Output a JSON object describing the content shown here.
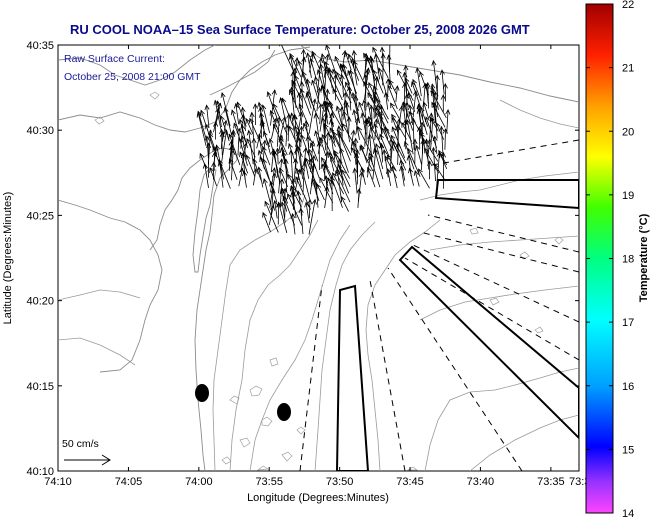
{
  "chart_data": {
    "type": "heatmap",
    "title": "RU COOL  NOAA–15  Sea Surface Temperature:  October 25, 2008 2026 GMT",
    "annotation": [
      "Raw Surface Current:",
      "October 25, 2008 21:00 GMT"
    ],
    "xlabel": "Longitude (Degrees:Minutes)",
    "ylabel": "Latitude (Degrees:Minutes)",
    "xlim": [
      -74.1667,
      -73.55
    ],
    "ylim": [
      40.1667,
      40.5833
    ],
    "x_ticks": [
      {
        "label": "74:10",
        "value": -74.1667
      },
      {
        "label": "74:05",
        "value": -74.0833
      },
      {
        "label": "74:00",
        "value": -74.0
      },
      {
        "label": "73:55",
        "value": -73.9167
      },
      {
        "label": "73:50",
        "value": -73.8333
      },
      {
        "label": "73:45",
        "value": -73.75
      },
      {
        "label": "73:40",
        "value": -73.6667
      },
      {
        "label": "73:35",
        "value": -73.5833
      },
      {
        "label": "73:3",
        "value": -73.55
      }
    ],
    "y_ticks": [
      {
        "label": "40:10",
        "value": 40.1667
      },
      {
        "label": "40:15",
        "value": 40.25
      },
      {
        "label": "40:20",
        "value": 40.3333
      },
      {
        "label": "40:25",
        "value": 40.4167
      },
      {
        "label": "40:30",
        "value": 40.5
      },
      {
        "label": "40:35",
        "value": 40.5833
      }
    ],
    "colorbar": {
      "label": "Temperature (°C)",
      "min": 14,
      "max": 22,
      "ticks": [
        22,
        21,
        20,
        19,
        18,
        17,
        16,
        15,
        14
      ]
    },
    "scale_label": "50 cm/s",
    "current_vector_region": {
      "lon_range": [
        -73.99,
        -73.7
      ],
      "lat_range": [
        40.4,
        40.56
      ],
      "mean_direction": "north-northwest"
    }
  },
  "colors": {
    "title": "#0a0a8c",
    "annotation": "#1a1a9a",
    "axis": "#000000",
    "contour": "#8c8c8c",
    "vectors": "#000000"
  }
}
